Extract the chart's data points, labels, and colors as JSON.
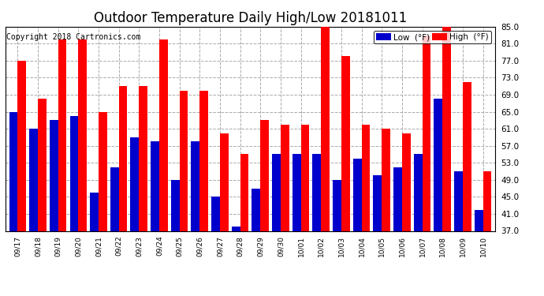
{
  "title": "Outdoor Temperature Daily High/Low 20181011",
  "copyright": "Copyright 2018 Cartronics.com",
  "categories": [
    "09/17",
    "09/18",
    "09/19",
    "09/20",
    "09/21",
    "09/22",
    "09/23",
    "09/24",
    "09/25",
    "09/26",
    "09/27",
    "09/28",
    "09/29",
    "09/30",
    "10/01",
    "10/02",
    "10/03",
    "10/04",
    "10/05",
    "10/06",
    "10/07",
    "10/08",
    "10/09",
    "10/10"
  ],
  "high_values": [
    77.0,
    68.0,
    82.0,
    82.0,
    65.0,
    71.0,
    71.0,
    82.0,
    70.0,
    70.0,
    60.0,
    55.0,
    63.0,
    62.0,
    62.0,
    85.0,
    78.0,
    62.0,
    61.0,
    60.0,
    83.0,
    85.0,
    72.0,
    51.0
  ],
  "low_values": [
    65.0,
    61.0,
    63.0,
    64.0,
    46.0,
    52.0,
    59.0,
    58.0,
    49.0,
    58.0,
    45.0,
    38.0,
    47.0,
    55.0,
    55.0,
    55.0,
    49.0,
    54.0,
    50.0,
    52.0,
    55.0,
    68.0,
    51.0,
    42.0
  ],
  "high_color": "#ff0000",
  "low_color": "#0000cc",
  "ymin": 37.0,
  "ymax": 85.0,
  "yticks": [
    37.0,
    41.0,
    45.0,
    49.0,
    53.0,
    57.0,
    61.0,
    65.0,
    69.0,
    73.0,
    77.0,
    81.0,
    85.0
  ],
  "background_color": "#ffffff",
  "plot_background": "#ffffff",
  "grid_color": "#aaaaaa",
  "title_fontsize": 12,
  "copyright_fontsize": 7,
  "legend_low_label": "Low  (°F)",
  "legend_high_label": "High  (°F)",
  "bar_width": 0.42
}
